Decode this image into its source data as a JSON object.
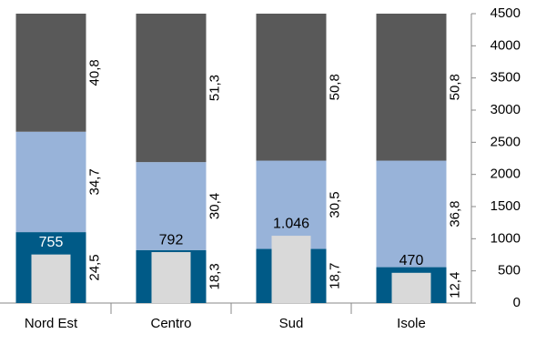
{
  "chart_data": {
    "type": "bar",
    "categories": [
      "Nord Est",
      "Centro",
      "Sud",
      "Isole"
    ],
    "ylim": [
      0,
      100
    ],
    "y2lim": [
      0,
      4500
    ],
    "y2ticks": [
      0,
      500,
      1000,
      1500,
      2000,
      2500,
      3000,
      3500,
      4000,
      4500
    ],
    "series": [
      {
        "color": "#005a87",
        "values": [
          24.5,
          18.3,
          18.7,
          12.4
        ],
        "value_labels": [
          "24,5",
          "18,3",
          "18,7",
          "12,4"
        ]
      },
      {
        "color": "#98b3d9",
        "values": [
          34.7,
          30.4,
          30.5,
          36.8
        ],
        "value_labels": [
          "34,7",
          "30,4",
          "30,5",
          "36,8"
        ]
      },
      {
        "color": "#595959",
        "values": [
          40.8,
          51.3,
          50.8,
          50.8
        ],
        "value_labels": [
          "40,8",
          "51,3",
          "50,8",
          "50,8"
        ]
      },
      {
        "color": "#d9d9d9",
        "axis": "y2",
        "values": [
          755,
          792,
          1046,
          470
        ],
        "value_labels": [
          "755",
          "792",
          "1.046",
          "470"
        ]
      }
    ]
  }
}
